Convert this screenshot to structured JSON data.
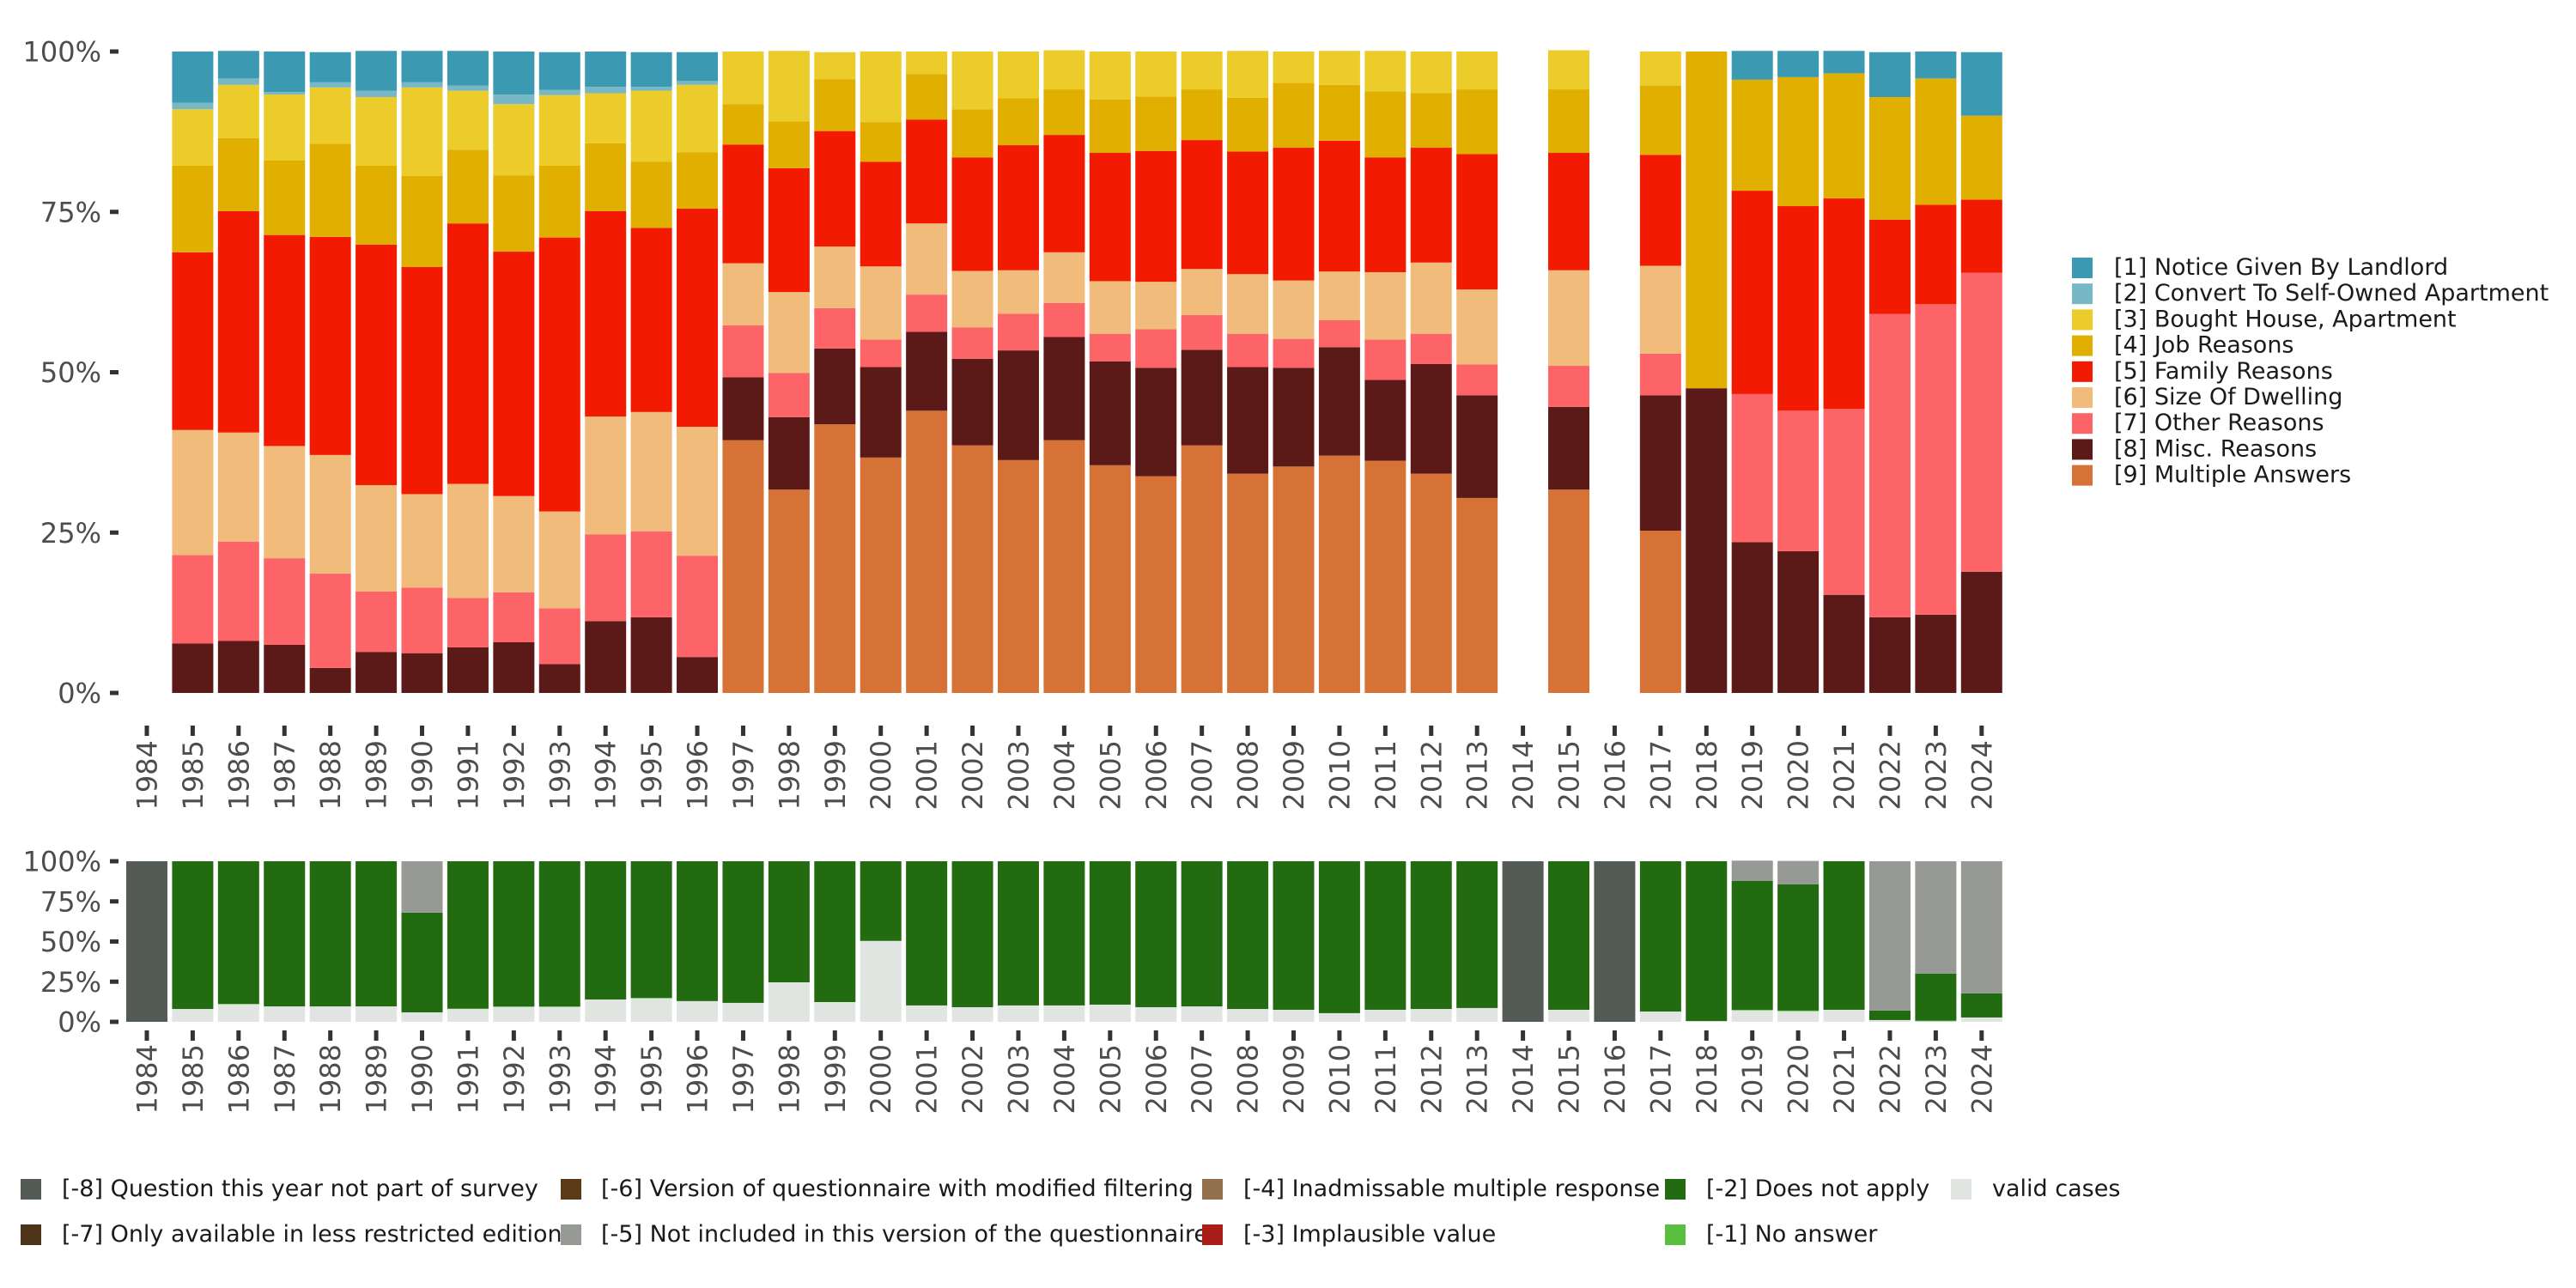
{
  "chart_data": [
    {
      "type": "bar",
      "stacked": true,
      "normalized": true,
      "title": "",
      "xlabel": "",
      "ylabel": "",
      "ylim": [
        0,
        100
      ],
      "yticks": [
        "0%",
        "25%",
        "50%",
        "75%",
        "100%"
      ],
      "categories": [
        "1984",
        "1985",
        "1986",
        "1987",
        "1988",
        "1989",
        "1990",
        "1991",
        "1992",
        "1993",
        "1994",
        "1995",
        "1996",
        "1997",
        "1998",
        "1999",
        "2000",
        "2001",
        "2002",
        "2003",
        "2004",
        "2005",
        "2006",
        "2007",
        "2008",
        "2009",
        "2010",
        "2011",
        "2012",
        "2013",
        "2014",
        "2015",
        "2016",
        "2017",
        "2018",
        "2019",
        "2020",
        "2021",
        "2022",
        "2023",
        "2024"
      ],
      "legend_position": "right",
      "series": [
        {
          "name": "[1] Notice Given By Landlord",
          "color": "#3b9ab2",
          "values": [
            null,
            8.0,
            4.3,
            6.3,
            4.7,
            6.2,
            4.9,
            5.4,
            6.7,
            5.9,
            5.5,
            5.4,
            4.5,
            0,
            0,
            0,
            0,
            0,
            0,
            0,
            0,
            0,
            0,
            0,
            0,
            0,
            0,
            0,
            0,
            0,
            null,
            0,
            null,
            0,
            0,
            4.5,
            4.1,
            3.5,
            7.0,
            4.2,
            9.9
          ]
        },
        {
          "name": "[2] Convert To Self-Owned Apartment",
          "color": "#78b7c5",
          "values": [
            null,
            1.0,
            1.0,
            0.4,
            0.8,
            1.0,
            0.8,
            0.8,
            1.5,
            0.8,
            1.0,
            0.6,
            0.6,
            0,
            0,
            0,
            0,
            0,
            0,
            0,
            0,
            0,
            0,
            0,
            0,
            0,
            0,
            0,
            0,
            0,
            null,
            0,
            null,
            0,
            0,
            0,
            0,
            0,
            0,
            0,
            0
          ]
        },
        {
          "name": "[3] Bought House, Apartment",
          "color": "#ebcc2a",
          "values": [
            null,
            8.8,
            8.3,
            10.3,
            8.8,
            10.7,
            13.8,
            9.2,
            11.1,
            11.0,
            7.8,
            11.1,
            10.5,
            8.2,
            11.0,
            4.2,
            11.0,
            3.5,
            9.0,
            7.3,
            6.1,
            7.5,
            7.0,
            5.9,
            7.3,
            4.9,
            5.3,
            6.3,
            6.5,
            5.9,
            null,
            6.1,
            null,
            5.3,
            0,
            0,
            0,
            0,
            0,
            0,
            0
          ]
        },
        {
          "name": "[4] Job Reasons",
          "color": "#e1af00",
          "values": [
            null,
            13.5,
            11.4,
            11.6,
            14.5,
            12.3,
            14.2,
            11.5,
            11.9,
            11.2,
            10.6,
            10.3,
            8.8,
            6.3,
            7.3,
            8.1,
            6.2,
            7.1,
            7.5,
            7.3,
            7.1,
            8.3,
            8.5,
            7.9,
            8.4,
            10.1,
            8.7,
            10.3,
            8.5,
            10.1,
            null,
            9.9,
            null,
            10.8,
            52.5,
            17.3,
            20.1,
            19.5,
            19.1,
            19.7,
            13.1
          ]
        },
        {
          "name": "[5] Family Reasons",
          "color": "#f21a00",
          "values": [
            null,
            27.7,
            34.5,
            32.9,
            34.0,
            37.5,
            35.4,
            40.6,
            38.1,
            42.7,
            32.0,
            28.7,
            34.0,
            18.5,
            19.3,
            18.0,
            16.3,
            16.2,
            17.7,
            19.5,
            18.3,
            20.0,
            20.4,
            20.1,
            19.1,
            20.7,
            20.4,
            17.9,
            17.9,
            21.1,
            null,
            18.3,
            null,
            17.3,
            0,
            31.7,
            31.9,
            32.8,
            14.7,
            15.5,
            11.4
          ]
        },
        {
          "name": "[6] Size Of Dwelling",
          "color": "#f1bb7b",
          "values": [
            null,
            19.5,
            17.0,
            17.5,
            18.5,
            16.6,
            14.6,
            17.8,
            15.0,
            15.1,
            18.4,
            18.6,
            20.1,
            9.7,
            12.6,
            9.6,
            11.4,
            11.1,
            8.8,
            6.8,
            7.9,
            8.2,
            7.4,
            7.2,
            9.3,
            9.1,
            7.6,
            10.5,
            11.1,
            11.7,
            null,
            14.9,
            null,
            13.7,
            0,
            0,
            0,
            0,
            0,
            0,
            0
          ]
        },
        {
          "name": "[7] Other Reasons",
          "color": "#fd6467",
          "values": [
            null,
            13.8,
            15.5,
            13.5,
            14.7,
            9.4,
            10.2,
            7.7,
            7.8,
            8.7,
            13.5,
            13.4,
            15.8,
            8.1,
            6.9,
            6.3,
            4.3,
            5.8,
            4.9,
            5.7,
            5.3,
            4.3,
            6.0,
            5.4,
            5.2,
            4.5,
            4.2,
            6.3,
            4.7,
            4.8,
            null,
            6.4,
            null,
            6.5,
            0,
            23.1,
            21.9,
            29.0,
            47.3,
            48.4,
            46.6
          ]
        },
        {
          "name": "[8] Misc. Reasons",
          "color": "#5b1a18",
          "values": [
            null,
            7.7,
            8.1,
            7.5,
            3.9,
            6.4,
            6.2,
            7.1,
            7.9,
            4.5,
            11.2,
            11.8,
            5.6,
            9.8,
            11.3,
            11.8,
            14.1,
            12.3,
            13.5,
            17.1,
            16.1,
            16.2,
            16.9,
            14.9,
            16.6,
            15.4,
            16.9,
            12.6,
            17.1,
            16.0,
            null,
            12.9,
            null,
            21.1,
            47.5,
            23.5,
            22.1,
            15.3,
            11.8,
            12.2,
            18.9
          ]
        },
        {
          "name": "[9] Multiple Answers",
          "color": "#d67236",
          "values": [
            null,
            0,
            0,
            0,
            0,
            0,
            0,
            0,
            0,
            0,
            0,
            0,
            0,
            39.4,
            31.7,
            41.9,
            36.7,
            44.0,
            38.6,
            36.3,
            39.4,
            35.5,
            33.8,
            38.6,
            34.2,
            35.3,
            37.0,
            36.2,
            34.2,
            30.4,
            null,
            31.7,
            null,
            25.3,
            0,
            0,
            0,
            0,
            0,
            0,
            0
          ]
        }
      ]
    },
    {
      "type": "bar",
      "stacked": true,
      "normalized": true,
      "title": "",
      "xlabel": "",
      "ylabel": "",
      "ylim": [
        0,
        100
      ],
      "yticks": [
        "0%",
        "25%",
        "50%",
        "75%",
        "100%"
      ],
      "categories": [
        "1984",
        "1985",
        "1986",
        "1987",
        "1988",
        "1989",
        "1990",
        "1991",
        "1992",
        "1993",
        "1994",
        "1995",
        "1996",
        "1997",
        "1998",
        "1999",
        "2000",
        "2001",
        "2002",
        "2003",
        "2004",
        "2005",
        "2006",
        "2007",
        "2008",
        "2009",
        "2010",
        "2011",
        "2012",
        "2013",
        "2014",
        "2015",
        "2016",
        "2017",
        "2018",
        "2019",
        "2020",
        "2021",
        "2022",
        "2023",
        "2024"
      ],
      "legend_position": "bottom",
      "series": [
        {
          "name": "[-8] Question this year not part of survey",
          "color": "#535b54",
          "values": [
            100,
            0,
            0,
            0,
            0,
            0,
            0,
            0,
            0,
            0,
            0,
            0,
            0,
            0,
            0,
            0,
            0,
            0,
            0,
            0,
            0,
            0,
            0,
            0,
            0,
            0,
            0,
            0,
            0,
            0,
            100,
            0,
            100,
            0,
            0,
            0,
            0,
            0,
            0,
            0,
            0
          ]
        },
        {
          "name": "[-7] Only available in less restricted edition",
          "color": "#4e331b",
          "values": [
            0,
            0,
            0,
            0,
            0,
            0,
            0,
            0,
            0,
            0,
            0,
            0,
            0,
            0,
            0,
            0,
            0,
            0,
            0,
            0,
            0,
            0,
            0,
            0,
            0,
            0,
            0,
            0,
            0,
            0,
            0,
            0,
            0,
            0,
            0,
            0,
            0,
            0,
            0,
            0,
            0
          ]
        },
        {
          "name": "[-6] Version of questionnaire with modified filtering",
          "color": "#5b3a17",
          "values": [
            0,
            0,
            0,
            0,
            0,
            0,
            0,
            0,
            0,
            0,
            0,
            0,
            0,
            0,
            0,
            0,
            0,
            0,
            0,
            0,
            0,
            0,
            0,
            0,
            0,
            0,
            0,
            0,
            0,
            0,
            0,
            0,
            0,
            0,
            0,
            0,
            0,
            0,
            0,
            0,
            0
          ]
        },
        {
          "name": "[-5] Not included in this version of the questionnaire",
          "color": "#979a94",
          "values": [
            0,
            0,
            0,
            0,
            0,
            0,
            32.0,
            0,
            0,
            0,
            0,
            0,
            0,
            0,
            0,
            0,
            0,
            0,
            0,
            0,
            0,
            0,
            0,
            0,
            0,
            0,
            0,
            0,
            0,
            0,
            0,
            0,
            0,
            0,
            0,
            12.7,
            14.6,
            0,
            93.0,
            70.0,
            82.3
          ]
        },
        {
          "name": "[-4] Inadmissable multiple response",
          "color": "#93714f",
          "values": [
            0,
            0,
            0,
            0,
            0,
            0,
            0,
            0,
            0,
            0,
            0,
            0,
            0,
            0,
            0,
            0,
            0,
            0,
            0,
            0,
            0,
            0,
            0,
            0,
            0,
            0,
            0,
            0,
            0,
            0,
            0,
            0,
            0,
            0,
            0,
            0,
            0,
            0,
            0,
            0,
            0
          ]
        },
        {
          "name": "[-3] Implausible value",
          "color": "#a81d18",
          "values": [
            0,
            0,
            0,
            0,
            0,
            0,
            0,
            0,
            0,
            0,
            0,
            0,
            0,
            0,
            0,
            0,
            0,
            0,
            0,
            0,
            0,
            0,
            0,
            0,
            0,
            0,
            0,
            0,
            0,
            0,
            0,
            0,
            0,
            0,
            0,
            0,
            0,
            0,
            0,
            0,
            0
          ]
        },
        {
          "name": "[-2] Does not apply",
          "color": "#226b11",
          "values": [
            0,
            92.0,
            88.8,
            90.4,
            90.4,
            90.4,
            62.1,
            91.7,
            90.5,
            90.5,
            86.1,
            85.1,
            87.1,
            88.2,
            75.4,
            87.7,
            49.6,
            89.8,
            90.9,
            89.8,
            89.8,
            89.3,
            90.9,
            90.4,
            92.0,
            92.5,
            94.6,
            92.5,
            92.0,
            91.4,
            0,
            92.5,
            0,
            93.6,
            99.5,
            80.2,
            78.6,
            92.5,
            5.9,
            29.3,
            15.0
          ]
        },
        {
          "name": "[-1] No answer",
          "color": "#5abf3e",
          "values": [
            0,
            0,
            0.3,
            0,
            0,
            0,
            0,
            0.3,
            0.2,
            0.2,
            0,
            0.3,
            0,
            0,
            0,
            0,
            0,
            0,
            0,
            0,
            0,
            0,
            0,
            0,
            0,
            0,
            0,
            0,
            0,
            0,
            0,
            0,
            0,
            0,
            0,
            0.4,
            0.4,
            0,
            0,
            0.3,
            0
          ]
        },
        {
          "name": "valid cases",
          "color": "#e1e5e1",
          "values": [
            0,
            8.0,
            10.9,
            9.6,
            9.6,
            9.6,
            5.9,
            8.0,
            9.3,
            9.3,
            13.9,
            14.6,
            12.9,
            11.8,
            24.6,
            12.3,
            50.4,
            10.2,
            9.1,
            10.2,
            10.2,
            10.7,
            9.1,
            9.6,
            8.0,
            7.5,
            5.4,
            7.5,
            8.0,
            8.6,
            0,
            7.5,
            0,
            6.4,
            0.5,
            7.1,
            6.6,
            7.5,
            1.1,
            0.4,
            2.7
          ]
        }
      ],
      "legend_layout": [
        [
          "[-8] Question this year not part of survey",
          "[-6] Version of questionnaire with modified filtering",
          "[-4] Inadmissable multiple response",
          "[-2] Does not apply",
          "valid cases"
        ],
        [
          "[-7] Only available in less restricted edition",
          "[-5] Not included in this version of the questionnaire",
          "[-3] Implausible value",
          "[-1] No answer"
        ]
      ]
    }
  ]
}
